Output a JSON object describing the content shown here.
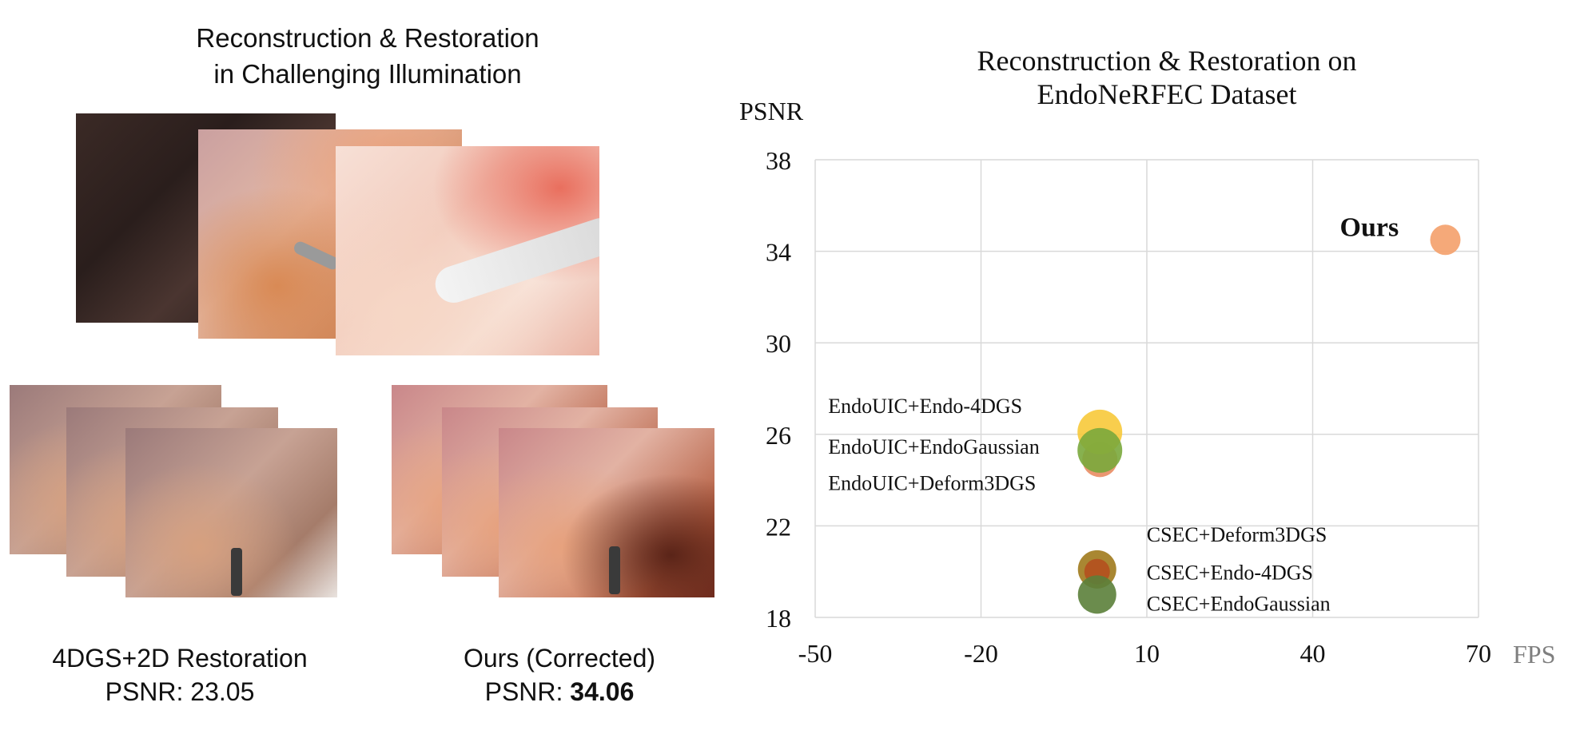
{
  "left_panel": {
    "title_line1": "Reconstruction & Restoration",
    "title_line2": "in Challenging Illumination",
    "caption_baseline_line1": "4DGS+2D Restoration",
    "caption_baseline_psnr_label": "PSNR:",
    "caption_baseline_psnr_value": "23.05",
    "caption_ours_line1": "Ours (Corrected)",
    "caption_ours_psnr_label": "PSNR:",
    "caption_ours_psnr_value": "34.06"
  },
  "chart_data": {
    "type": "scatter",
    "title_line1": "Reconstruction & Restoration on",
    "title_line2": "EndoNeRFEC Dataset",
    "xlabel": "FPS",
    "ylabel": "PSNR",
    "xlim": [
      -50,
      70
    ],
    "ylim": [
      18,
      38
    ],
    "xticks": [
      -50,
      -20,
      10,
      40,
      70
    ],
    "yticks": [
      18,
      22,
      26,
      30,
      34,
      38
    ],
    "grid": true,
    "points": [
      {
        "label": "Ours",
        "x": 64,
        "y": 34.5,
        "color": "#f4a06a",
        "bold": true
      },
      {
        "label": "EndoUIC+Endo-4DGS",
        "x": 1.5,
        "y": 26.1,
        "color": "#f7c93a"
      },
      {
        "label": "EndoUIC+EndoGaussian",
        "x": 1.5,
        "y": 25.3,
        "color": "#7aa93c"
      },
      {
        "label": "EndoUIC+Deform3DGS",
        "x": 1.5,
        "y": 24.9,
        "color": "#e98c63"
      },
      {
        "label": "CSEC+Deform3DGS",
        "x": 1.0,
        "y": 20.1,
        "color": "#a07a1c"
      },
      {
        "label": "CSEC+Endo-4DGS",
        "x": 1.0,
        "y": 20.0,
        "color": "#b4501e"
      },
      {
        "label": "CSEC+EndoGaussian",
        "x": 1.0,
        "y": 19.0,
        "color": "#5b7f3a"
      }
    ]
  }
}
